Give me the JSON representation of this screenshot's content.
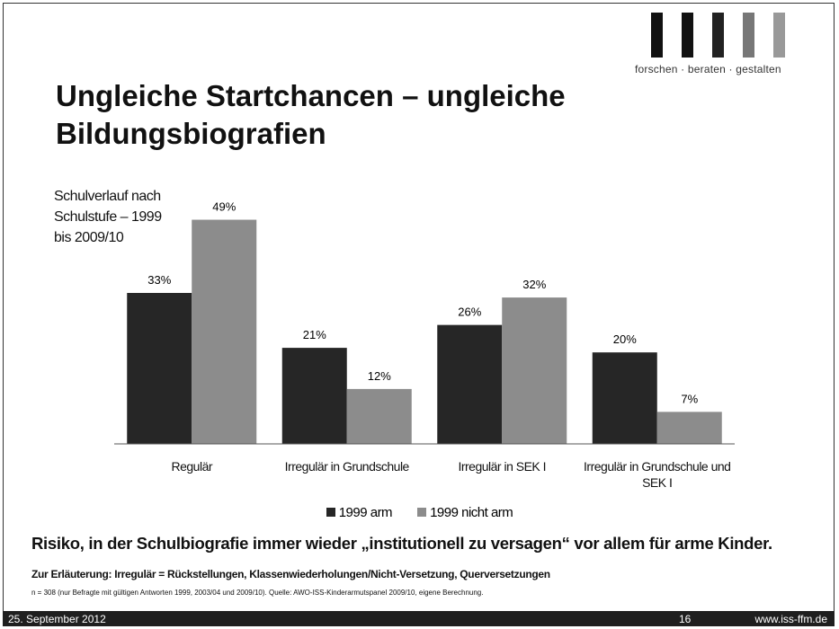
{
  "logo": {
    "tagline": "forschen · beraten · gestalten"
  },
  "chart_data": {
    "type": "bar",
    "title": "Ungleiche Startchancen – ungleiche Bildungsbiografien",
    "subtitle": "Schulverlauf nach Schulstufe – 1999 bis 2009/10",
    "categories": [
      "Regulär",
      "Irregulär in Grundschule",
      "Irregulär in SEK I",
      "Irregulär in Grundschule und SEK I"
    ],
    "series": [
      {
        "name": "1999 arm",
        "color": "#262626",
        "values": [
          33,
          21,
          26,
          20
        ],
        "value_labels": [
          "33%",
          "21%",
          "26%",
          "20%"
        ]
      },
      {
        "name": "1999 nicht arm",
        "color": "#8c8c8c",
        "values": [
          49,
          12,
          32,
          7
        ],
        "value_labels": [
          "49%",
          "12%",
          "32%",
          "7%"
        ]
      }
    ],
    "ylim": [
      0,
      55
    ],
    "legend": "bottom"
  },
  "notes": {
    "headline": "Risiko, in der Schulbiografie immer wieder „institutionell zu versagen“ vor allem für arme Kinder.",
    "explanation": "Zur Erläuterung: Irregulär = Rückstellungen, Klassenwiederholungen/Nicht-Versetzung, Querversetzungen",
    "source": "n = 308 (nur Befragte mit gültigen Antworten 1999, 2003/04 und 2009/10). Quelle: AWO-ISS-Kinderarmutspanel 2009/10, eigene Berechnung."
  },
  "footer": {
    "date": "25. September 2012",
    "page": "16",
    "url": "www.iss-ffm.de"
  }
}
